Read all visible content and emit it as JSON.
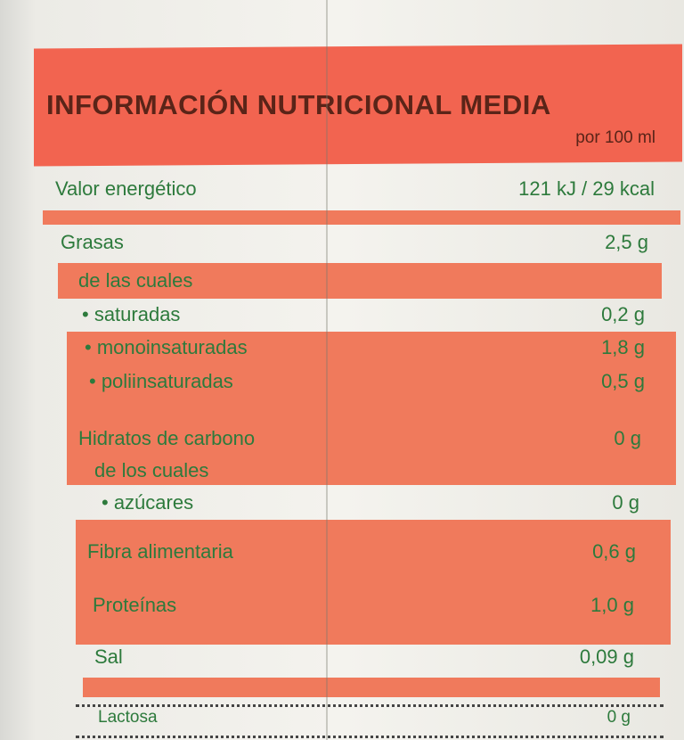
{
  "header": {
    "title": "INFORMACIÓN NUTRICIONAL MEDIA",
    "subtitle": "por 100 ml"
  },
  "table": {
    "rows": [
      {
        "label": "Valor energético",
        "value": "121 kJ / 29 kcal"
      },
      {
        "label": "Grasas",
        "value": "2,5 g"
      },
      {
        "label": "de las cuales"
      },
      {
        "label": "• saturadas",
        "value": "0,2 g"
      },
      {
        "label": "• monoinsaturadas",
        "value": "1,8 g"
      },
      {
        "label": "• poliinsaturadas",
        "value": "0,5 g"
      },
      {
        "label": "Hidratos de carbono",
        "value": "0 g"
      },
      {
        "label": "de los cuales"
      },
      {
        "label": "• azúcares",
        "value": "0 g"
      },
      {
        "label": "Fibra alimentaria",
        "value": "0,6 g"
      },
      {
        "label": "Proteínas",
        "value": "1,0 g"
      },
      {
        "label": "Sal",
        "value": "0,09 g"
      },
      {
        "label": "Lactosa",
        "value": "0 g"
      }
    ]
  }
}
